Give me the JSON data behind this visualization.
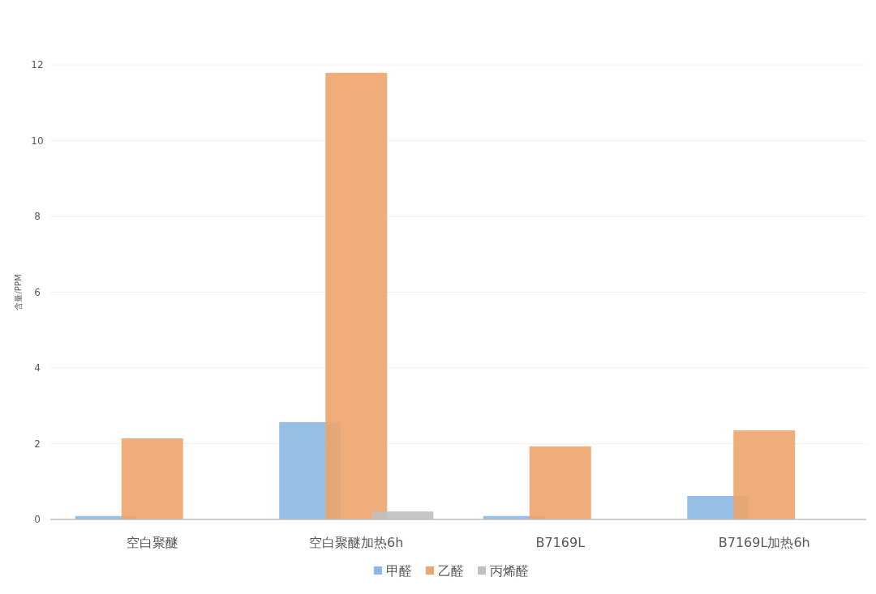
{
  "chart_data": {
    "type": "bar",
    "ylabel": "含量/PPM",
    "categories": [
      "空白聚醚",
      "空白聚醚加热6h",
      "B7169L",
      "B7169L加热6h"
    ],
    "series": [
      {
        "name": "甲醛",
        "color": "#8cb8e2",
        "values": [
          0.09,
          2.57,
          0.09,
          0.62
        ]
      },
      {
        "name": "乙醛",
        "color": "#eea46c",
        "values": [
          2.14,
          11.79,
          1.93,
          2.35
        ]
      },
      {
        "name": "丙烯醛",
        "color": "#c0c0c0",
        "values": [
          0,
          0.21,
          0,
          0
        ]
      }
    ],
    "ylim": [
      0,
      12
    ],
    "yticks": [
      0,
      2,
      4,
      6,
      8,
      10,
      12
    ],
    "grid": "y",
    "legend": "bottom"
  }
}
